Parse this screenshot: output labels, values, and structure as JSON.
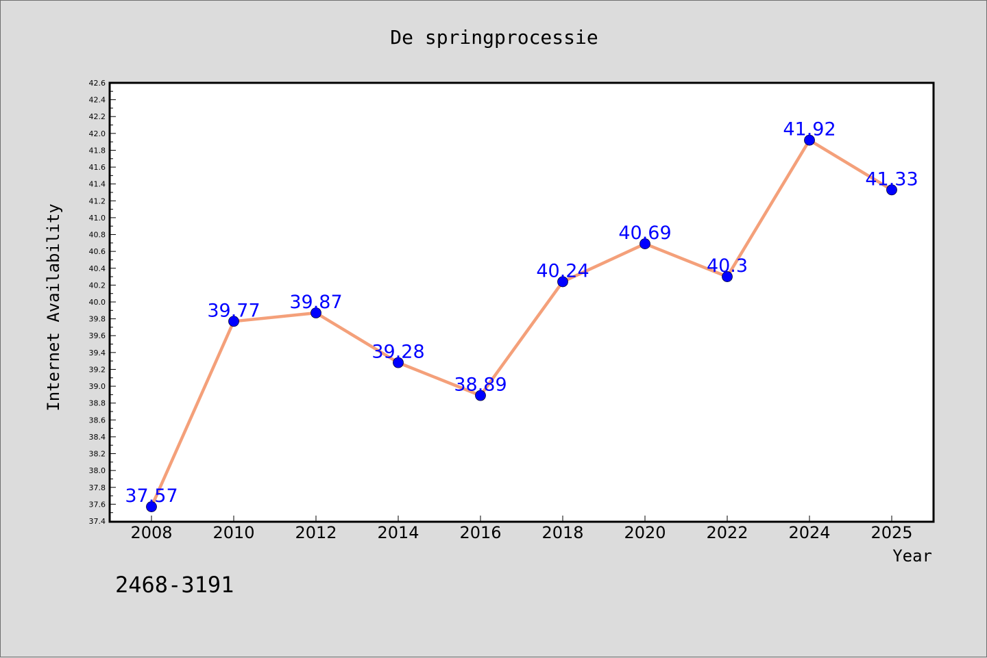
{
  "chart_data": {
    "type": "line",
    "title": "De springprocessie",
    "xlabel": "Year",
    "ylabel": "Internet Availability",
    "categories": [
      "2008",
      "2010",
      "2012",
      "2014",
      "2016",
      "2018",
      "2020",
      "2022",
      "2024",
      "2025"
    ],
    "series": [
      {
        "values": [
          37.57,
          39.77,
          39.87,
          39.28,
          38.89,
          40.24,
          40.69,
          40.3,
          41.92,
          41.33
        ],
        "data_labels": [
          "37.57",
          "39.77",
          "39.87",
          "39.28",
          "38.89",
          "40.24",
          "40.69",
          "40.3",
          "41.92",
          "41.33"
        ],
        "line_color": "#f4a07a",
        "marker_color": "#0000ff"
      }
    ],
    "ylim": [
      37.4,
      42.6
    ],
    "yticks": [
      "37.4",
      "37.6",
      "37.8",
      "38.0",
      "38.2",
      "38.4",
      "38.6",
      "38.8",
      "39.0",
      "39.2",
      "39.4",
      "39.6",
      "39.8",
      "40.0",
      "40.2",
      "40.4",
      "40.6",
      "40.8",
      "41.0",
      "41.2",
      "41.4",
      "41.6",
      "41.8",
      "42.0",
      "42.2",
      "42.4",
      "42.6"
    ],
    "grid": false,
    "legend": "none",
    "colors": {
      "background": "#dcdcdc",
      "plot_background": "#ffffff",
      "label_color": "#0000ff"
    }
  },
  "footnote": "2468-3191"
}
